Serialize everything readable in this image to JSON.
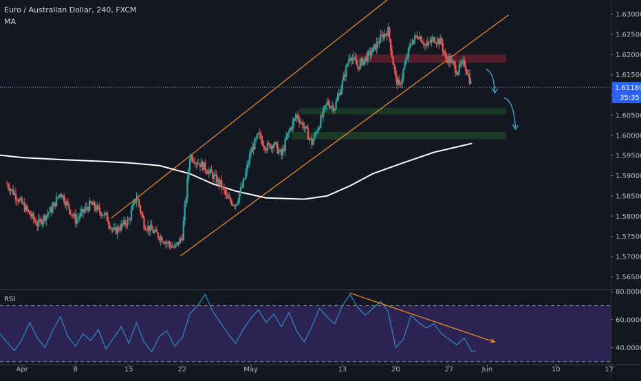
{
  "header": {
    "title": "Euro / Australian Dollar, 240, FXCM",
    "indicator": "MA"
  },
  "rsi_panel": {
    "label": "RSI"
  },
  "colors": {
    "background": "#131722",
    "candle_up": "#26a69a",
    "candle_down": "#ef5350",
    "moving_average": "#ffffff",
    "channel": "#f7931a",
    "rsi_line": "#2a8fc7",
    "rsi_band": "#3a2a6e",
    "resistance_zone": "#5a1f2a",
    "support_zone": "#1d3b26",
    "projection_arrow": "#3ea0c0",
    "last_price_tag": "#2962ff"
  },
  "chart_data": [
    {
      "type": "candlestick",
      "title": "Euro / Australian Dollar, 240, FXCM",
      "ylim": [
        1.562,
        1.6335
      ],
      "price_ticks": [
        "1.63000",
        "1.62500",
        "1.62000",
        "1.61500",
        "1.61000",
        "1.60500",
        "1.60000",
        "1.59500",
        "1.59000",
        "1.58500",
        "1.58000",
        "1.57500",
        "1.57000",
        "1.56500"
      ],
      "x_ticks": [
        {
          "label": "Apr",
          "day": 0
        },
        {
          "label": "8",
          "day": 7
        },
        {
          "label": "15",
          "day": 14
        },
        {
          "label": "22",
          "day": 21
        },
        {
          "label": "May",
          "day": 30
        },
        {
          "label": "13",
          "day": 42
        },
        {
          "label": "20",
          "day": 49
        },
        {
          "label": "27",
          "day": 56
        },
        {
          "label": "Jun",
          "day": 61
        },
        {
          "label": "10",
          "day": 70
        },
        {
          "label": "17",
          "day": 77
        }
      ],
      "xlim_days": [
        -2.9,
        77.2
      ],
      "last_price": {
        "value": 1.61189,
        "label": "1.61189",
        "countdown": "35:35"
      },
      "series_path": [
        [
          -2,
          1.588
        ],
        [
          0,
          1.583
        ],
        [
          2,
          1.578
        ],
        [
          4,
          1.582
        ],
        [
          5,
          1.586
        ],
        [
          7,
          1.579
        ],
        [
          9,
          1.583
        ],
        [
          11,
          1.58
        ],
        [
          12,
          1.576
        ],
        [
          14,
          1.579
        ],
        [
          15,
          1.585
        ],
        [
          16,
          1.578
        ],
        [
          18,
          1.575
        ],
        [
          20,
          1.572
        ],
        [
          21,
          1.575
        ],
        [
          22,
          1.595
        ],
        [
          24,
          1.592
        ],
        [
          26,
          1.588
        ],
        [
          27,
          1.584
        ],
        [
          28,
          1.583
        ],
        [
          29,
          1.588
        ],
        [
          30,
          1.596
        ],
        [
          31,
          1.6
        ],
        [
          32,
          1.597
        ],
        [
          33,
          1.598
        ],
        [
          34,
          1.595
        ],
        [
          35,
          1.601
        ],
        [
          36,
          1.605
        ],
        [
          37,
          1.602
        ],
        [
          38,
          1.598
        ],
        [
          39,
          1.603
        ],
        [
          40,
          1.608
        ],
        [
          41,
          1.607
        ],
        [
          42,
          1.613
        ],
        [
          43,
          1.62
        ],
        [
          44,
          1.617
        ],
        [
          46,
          1.621
        ],
        [
          47,
          1.624
        ],
        [
          48,
          1.626
        ],
        [
          49,
          1.614
        ],
        [
          49.5,
          1.612
        ],
        [
          50,
          1.616
        ],
        [
          51,
          1.623
        ],
        [
          52,
          1.625
        ],
        [
          53,
          1.622
        ],
        [
          54,
          1.624
        ],
        [
          55,
          1.623
        ],
        [
          55.5,
          1.619
        ],
        [
          56,
          1.619
        ],
        [
          57,
          1.616
        ],
        [
          58,
          1.618
        ],
        [
          59,
          1.6119
        ]
      ],
      "moving_average": [
        [
          -2.9,
          1.5951
        ],
        [
          0,
          1.5945
        ],
        [
          5,
          1.594
        ],
        [
          10,
          1.5936
        ],
        [
          14,
          1.5932
        ],
        [
          18,
          1.5925
        ],
        [
          22,
          1.5905
        ],
        [
          25,
          1.588
        ],
        [
          28,
          1.5862
        ],
        [
          32,
          1.5845
        ],
        [
          37,
          1.5842
        ],
        [
          40,
          1.585
        ],
        [
          43,
          1.5875
        ],
        [
          46,
          1.5905
        ],
        [
          50,
          1.5932
        ],
        [
          54,
          1.5958
        ],
        [
          59,
          1.598
        ]
      ],
      "channel": {
        "upper": [
          [
            11.7,
            1.5795
          ],
          [
            49.2,
            1.6355
          ]
        ],
        "lower": [
          [
            20.8,
            1.5702
          ],
          [
            63.8,
            1.6298
          ]
        ]
      },
      "zones": [
        {
          "kind": "resistance",
          "from_day": 43.9,
          "to_day": 63.5,
          "high": 1.62,
          "low": 1.618
        },
        {
          "kind": "support",
          "from_day": 36.4,
          "to_day": 63.5,
          "high": 1.6068,
          "low": 1.6052
        },
        {
          "kind": "support",
          "from_day": 35.4,
          "to_day": 63.5,
          "high": 1.6008,
          "low": 1.599
        }
      ],
      "projection_arrows": [
        {
          "from": [
            60.8,
            1.6164
          ],
          "to": [
            62.0,
            1.6105
          ]
        },
        {
          "from": [
            63.2,
            1.6093
          ],
          "to": [
            64.7,
            1.6015
          ]
        }
      ]
    },
    {
      "type": "line",
      "title": "RSI",
      "ylim": [
        28,
        82
      ],
      "y_ticks": [
        "80.0000",
        "60.0000",
        "40.0000"
      ],
      "bands": [
        70,
        30
      ],
      "series": [
        {
          "name": "RSI",
          "points": [
            [
              -2.9,
              50
            ],
            [
              -2,
              44
            ],
            [
              -1,
              38
            ],
            [
              0,
              46
            ],
            [
              1,
              58
            ],
            [
              2,
              47
            ],
            [
              3,
              40
            ],
            [
              4,
              52
            ],
            [
              5,
              62
            ],
            [
              6,
              48
            ],
            [
              7,
              41
            ],
            [
              8,
              50
            ],
            [
              9,
              45
            ],
            [
              10,
              53
            ],
            [
              11,
              39
            ],
            [
              12,
              47
            ],
            [
              13,
              55
            ],
            [
              14,
              43
            ],
            [
              15,
              58
            ],
            [
              16,
              44
            ],
            [
              17,
              37
            ],
            [
              18,
              48
            ],
            [
              19,
              52
            ],
            [
              20,
              41
            ],
            [
              21,
              47
            ],
            [
              22,
              64
            ],
            [
              23,
              70
            ],
            [
              24,
              78
            ],
            [
              25,
              66
            ],
            [
              26,
              58
            ],
            [
              27,
              50
            ],
            [
              28,
              43
            ],
            [
              29,
              53
            ],
            [
              30,
              61
            ],
            [
              31,
              67
            ],
            [
              32,
              58
            ],
            [
              33,
              64
            ],
            [
              34,
              55
            ],
            [
              35,
              65
            ],
            [
              36,
              52
            ],
            [
              37,
              44
            ],
            [
              38,
              55
            ],
            [
              39,
              68
            ],
            [
              40,
              62
            ],
            [
              41,
              57
            ],
            [
              42,
              70
            ],
            [
              43,
              78
            ],
            [
              44,
              69
            ],
            [
              45,
              63
            ],
            [
              46,
              68
            ],
            [
              47,
              73
            ],
            [
              48,
              66
            ],
            [
              49,
              40
            ],
            [
              50,
              46
            ],
            [
              51,
              63
            ],
            [
              52,
              58
            ],
            [
              53,
              54
            ],
            [
              54,
              57
            ],
            [
              55,
              50
            ],
            [
              56,
              46
            ],
            [
              57,
              42
            ],
            [
              58,
              47
            ],
            [
              59,
              37
            ],
            [
              59.5,
              38
            ]
          ]
        }
      ],
      "trendline": [
        [
          43,
          79
        ],
        [
          62,
          44
        ]
      ]
    }
  ]
}
